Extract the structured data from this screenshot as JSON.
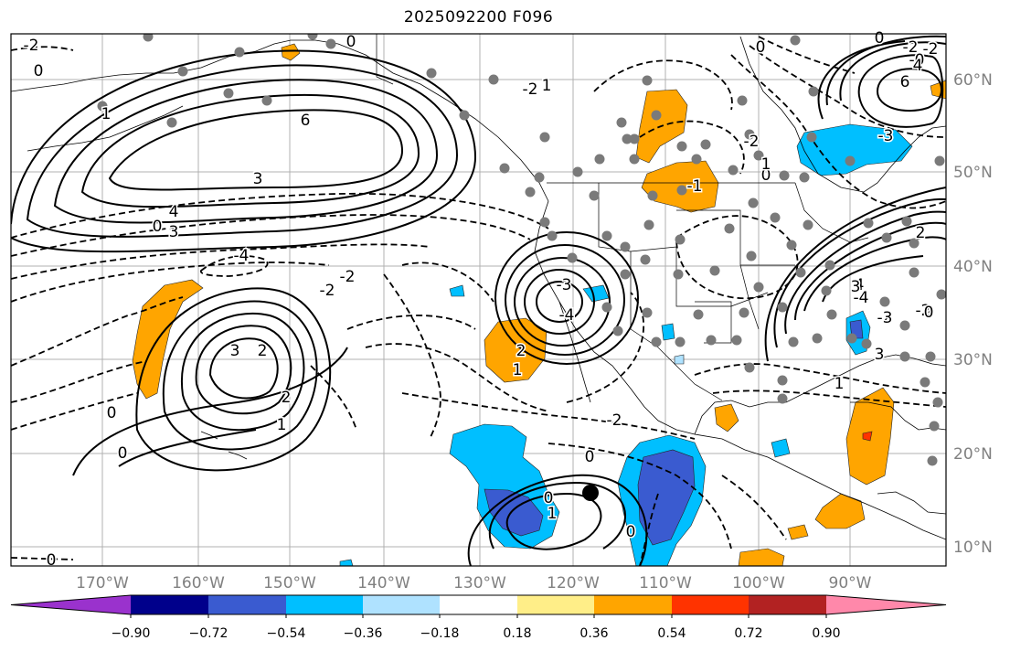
{
  "title": "2025092200 F096",
  "lon_labels": [
    "170°W",
    "160°W",
    "150°W",
    "140°W",
    "130°W",
    "120°W",
    "110°W",
    "100°W",
    "90°W"
  ],
  "lat_labels": [
    "60°N",
    "50°N",
    "40°N",
    "30°N",
    "20°N",
    "10°N"
  ],
  "colorbar": {
    "tick_labels": [
      "−0.90",
      "−0.72",
      "−0.54",
      "−0.36",
      "−0.18",
      "0.18",
      "0.36",
      "0.54",
      "0.72",
      "0.90"
    ],
    "colors": [
      "#9a32cd",
      "#00008b",
      "#3a5bd0",
      "#00bfff",
      "#afe2ff",
      "#ffffff",
      "#ffee88",
      "#ffa500",
      "#ff3300",
      "#b22222",
      "#ff88aa"
    ]
  },
  "contour_labels": [
    {
      "text": "-2"
    },
    {
      "text": "0"
    },
    {
      "text": "0"
    },
    {
      "text": "0"
    },
    {
      "text": "0"
    },
    {
      "text": "0"
    },
    {
      "text": "1"
    },
    {
      "text": "3"
    },
    {
      "text": "6"
    },
    {
      "text": "-4"
    },
    {
      "text": "1"
    },
    {
      "text": "-2"
    },
    {
      "text": "3"
    },
    {
      "text": "2"
    },
    {
      "text": "2"
    },
    {
      "text": "1"
    },
    {
      "text": "0"
    },
    {
      "text": "-4"
    },
    {
      "text": "-3"
    },
    {
      "text": "-2"
    },
    {
      "text": "-2"
    },
    {
      "text": "3"
    },
    {
      "text": "4"
    },
    {
      "text": "2"
    },
    {
      "text": "1"
    },
    {
      "text": "0"
    },
    {
      "text": "0"
    },
    {
      "text": "-2"
    },
    {
      "text": "3"
    },
    {
      "text": "4"
    },
    {
      "text": "1"
    },
    {
      "text": "-2"
    },
    {
      "text": "-2"
    },
    {
      "text": "-2"
    },
    {
      "text": "0"
    },
    {
      "text": "0"
    },
    {
      "text": "1"
    },
    {
      "text": "0"
    },
    {
      "text": "-0"
    },
    {
      "text": "-2"
    },
    {
      "text": "-2"
    },
    {
      "text": "-3"
    },
    {
      "text": "4"
    },
    {
      "text": "6"
    },
    {
      "text": "3"
    },
    {
      "text": "2"
    },
    {
      "text": "-4"
    },
    {
      "text": "-3"
    },
    {
      "text": "0"
    },
    {
      "text": "-1"
    },
    {
      "text": "1"
    },
    {
      "text": "0"
    }
  ]
}
